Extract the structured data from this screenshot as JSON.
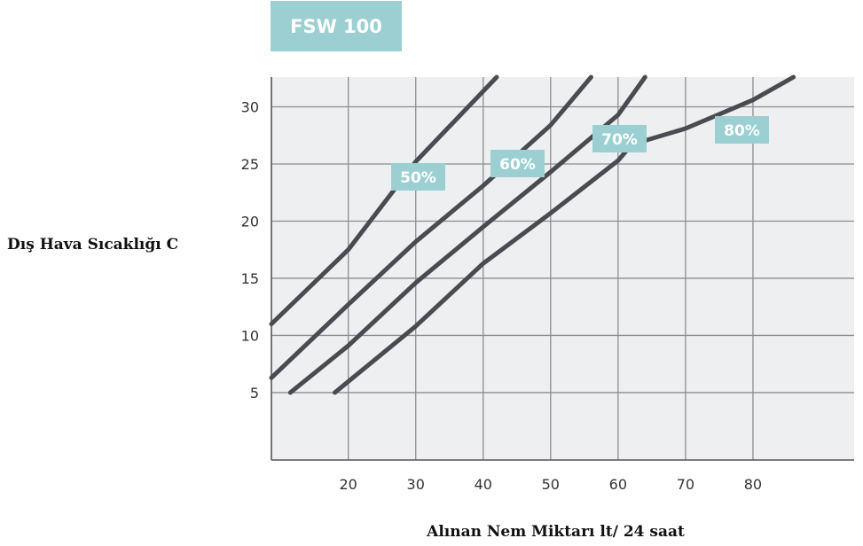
{
  "chart_data": {
    "type": "line",
    "title": "FSW 100",
    "xlabel": "Alınan Nem Miktarı lt/ 24 saat",
    "ylabel": "Dış Hava Sıcaklığı C",
    "xlim": [
      8.6,
      95
    ],
    "ylim": [
      -0.9,
      32.6
    ],
    "xticks": [
      20,
      30,
      40,
      50,
      60,
      70,
      80
    ],
    "yticks": [
      5,
      10,
      15,
      20,
      25,
      30
    ],
    "grid": true,
    "legend": "none",
    "series": [
      {
        "name": "50%",
        "x": [
          8.6,
          20,
          30,
          42
        ],
        "y": [
          11,
          17.5,
          25.2,
          32.6
        ]
      },
      {
        "name": "60%",
        "x": [
          8.6,
          20,
          30,
          40,
          50,
          56
        ],
        "y": [
          6.3,
          12.7,
          18.2,
          23.1,
          28.4,
          32.6
        ]
      },
      {
        "name": "70%",
        "x": [
          11.4,
          20,
          30,
          40,
          50,
          60,
          64
        ],
        "y": [
          5,
          9.1,
          14.6,
          19.5,
          24.3,
          29.3,
          32.6
        ]
      },
      {
        "name": "80%",
        "x": [
          18,
          30,
          40,
          50,
          60,
          62,
          70,
          80,
          86
        ],
        "y": [
          5,
          10.8,
          16.3,
          20.7,
          25.3,
          26.7,
          28.1,
          30.6,
          32.6
        ]
      }
    ],
    "colors": {
      "line": "#4a4b50",
      "plot_bg": "#eeeff1",
      "grid": "#8b8d90",
      "label_bg": "#9bcfd1"
    }
  }
}
